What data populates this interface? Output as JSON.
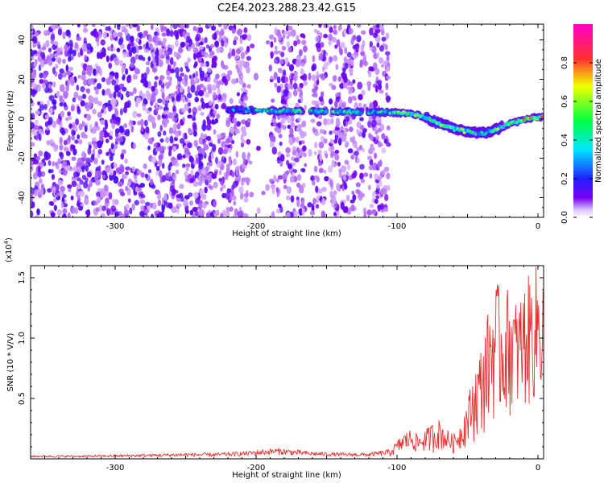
{
  "title": "C2E4.2023.288.23.42.G15",
  "chart_data": [
    {
      "type": "heatmap",
      "xlabel": "Height of straight line (km)",
      "ylabel": "Frequency (Hz)",
      "xlim": [
        -360,
        4
      ],
      "ylim": [
        -50,
        48
      ],
      "xticks": [
        -300,
        -200,
        -100,
        0
      ],
      "yticks": [
        -40,
        -20,
        0,
        20,
        40
      ],
      "xtick_labels": [
        "-300",
        "-200",
        "-100",
        "0"
      ],
      "ytick_labels": [
        "-40",
        "-20",
        "0",
        "20",
        "40"
      ],
      "colorbar": {
        "label": "Normalized spectral amplitude",
        "range": [
          0,
          1
        ],
        "ticks": [
          0.0,
          0.2,
          0.4,
          0.6,
          0.8
        ],
        "tick_labels": [
          "0.0",
          "0.2",
          "0.4",
          "0.6",
          "0.8"
        ],
        "colormap": [
          "#ffffff",
          "#7a00f0",
          "#2020ff",
          "#00e5ff",
          "#00ff40",
          "#f0ff00",
          "#ff3030",
          "#ff00c8"
        ]
      },
      "signal_trace": {
        "x": [
          -220,
          -200,
          -180,
          -160,
          -140,
          -120,
          -100,
          -90,
          -80,
          -70,
          -60,
          -50,
          -40,
          -30,
          -20,
          -10,
          0,
          4
        ],
        "frequency": [
          4.5,
          4.3,
          4.0,
          3.8,
          3.5,
          3.4,
          3.2,
          2.5,
          0.8,
          -2.5,
          -5.0,
          -6.5,
          -7.5,
          -5.5,
          -2.5,
          -0.5,
          0.8,
          1.0
        ],
        "amplitude": [
          0.35,
          0.45,
          0.6,
          0.5,
          0.55,
          0.45,
          0.6,
          0.7,
          0.65,
          0.75,
          0.7,
          0.6,
          0.55,
          0.6,
          0.8,
          0.85,
          0.8,
          0.75
        ]
      },
      "noise_background": {
        "dense_region_x": [
          -360,
          -230
        ],
        "sparse_region_x": [
          -230,
          -105
        ],
        "clean_region_x": [
          -105,
          4
        ]
      }
    },
    {
      "type": "line",
      "xlabel": "Height of straight line (km)",
      "ylabel": "SNR (10 * V/V)",
      "multiplier_label": "(x10",
      "multiplier_exp": "4",
      "multiplier_close": ")",
      "xlim": [
        -360,
        4
      ],
      "ylim": [
        0,
        1.6
      ],
      "xticks": [
        -300,
        -200,
        -100,
        0
      ],
      "yticks": [
        0.5,
        1.0,
        1.5
      ],
      "xtick_labels": [
        "-300",
        "-200",
        "-100",
        "0"
      ],
      "ytick_labels": [
        "0.5",
        "1.0",
        "1.5"
      ],
      "series": [
        {
          "color": "#e83030",
          "x": [
            -360,
            -320,
            -280,
            -250,
            -230,
            -210,
            -195,
            -185,
            -175,
            -160,
            -140,
            -120,
            -105,
            -100,
            -95,
            -90,
            -85,
            -80,
            -75,
            -70,
            -65,
            -60,
            -55,
            -50,
            -45,
            -40,
            -35,
            -30,
            -25,
            -20,
            -15,
            -10,
            -5,
            0,
            4
          ],
          "y": [
            0.02,
            0.02,
            0.025,
            0.03,
            0.03,
            0.04,
            0.05,
            0.06,
            0.05,
            0.04,
            0.035,
            0.03,
            0.05,
            0.1,
            0.14,
            0.17,
            0.12,
            0.16,
            0.13,
            0.2,
            0.16,
            0.12,
            0.2,
            0.3,
            0.4,
            0.5,
            0.7,
            0.9,
            0.8,
            1.0,
            0.95,
            1.05,
            1.15,
            1.2,
            1.25
          ],
          "upper_envelope": [
            0.03,
            0.03,
            0.04,
            0.05,
            0.05,
            0.06,
            0.08,
            0.09,
            0.08,
            0.06,
            0.05,
            0.05,
            0.08,
            0.15,
            0.22,
            0.25,
            0.2,
            0.24,
            0.3,
            0.33,
            0.25,
            0.2,
            0.3,
            0.5,
            0.75,
            0.95,
            1.25,
            1.5,
            1.35,
            1.45,
            1.3,
            1.45,
            1.55,
            1.62,
            1.6
          ]
        }
      ]
    }
  ]
}
